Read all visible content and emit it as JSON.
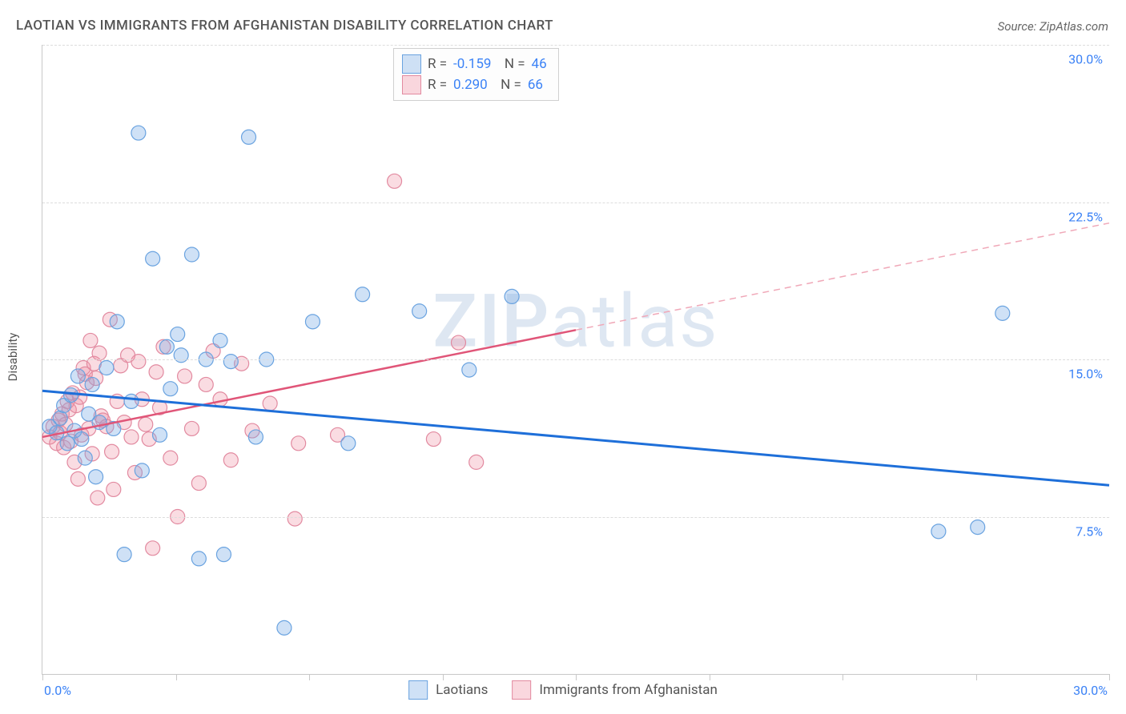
{
  "title": "LAOTIAN VS IMMIGRANTS FROM AFGHANISTAN DISABILITY CORRELATION CHART",
  "source": "Source: ZipAtlas.com",
  "watermark": "ZIPatlas",
  "ylabel": "Disability",
  "chart": {
    "type": "scatter+regression",
    "x_domain": [
      0,
      30
    ],
    "y_domain": [
      0,
      30
    ],
    "x_ticks": [
      0,
      3.75,
      7.5,
      11.25,
      15,
      18.75,
      22.5,
      26.25,
      30
    ],
    "x_tick_labels": {
      "0": "0.0%",
      "30": "30.0%"
    },
    "y_ticks": [
      7.5,
      15,
      22.5,
      30
    ],
    "y_tick_labels": [
      "7.5%",
      "15.0%",
      "22.5%",
      "30.0%"
    ],
    "grid_color": "#dcdcdc",
    "background": "#ffffff",
    "marker_radius": 9,
    "series": {
      "blue": {
        "label": "Laotians",
        "color_fill": "rgba(118,169,228,0.35)",
        "color_stroke": "#6aa3e0",
        "R": "-0.159",
        "N": "46",
        "regression": {
          "x1": 0,
          "y1": 13.5,
          "x2": 30,
          "y2": 9.0,
          "color": "#1e6fd9",
          "width": 3,
          "extrapolate_dash": false
        },
        "points": [
          [
            0.2,
            11.8
          ],
          [
            0.4,
            11.5
          ],
          [
            0.5,
            12.2
          ],
          [
            0.6,
            12.8
          ],
          [
            0.7,
            11.0
          ],
          [
            0.8,
            13.3
          ],
          [
            0.9,
            11.6
          ],
          [
            1.0,
            14.2
          ],
          [
            1.1,
            11.2
          ],
          [
            1.2,
            10.3
          ],
          [
            1.3,
            12.4
          ],
          [
            1.4,
            13.8
          ],
          [
            1.5,
            9.4
          ],
          [
            1.6,
            12.0
          ],
          [
            1.8,
            14.6
          ],
          [
            2.0,
            11.7
          ],
          [
            2.1,
            16.8
          ],
          [
            2.3,
            5.7
          ],
          [
            2.5,
            13.0
          ],
          [
            2.7,
            25.8
          ],
          [
            2.8,
            9.7
          ],
          [
            3.1,
            19.8
          ],
          [
            3.3,
            11.4
          ],
          [
            3.5,
            15.6
          ],
          [
            3.6,
            13.6
          ],
          [
            3.8,
            16.2
          ],
          [
            3.9,
            15.2
          ],
          [
            4.2,
            20.0
          ],
          [
            4.4,
            5.5
          ],
          [
            4.6,
            15.0
          ],
          [
            5.0,
            15.9
          ],
          [
            5.1,
            5.7
          ],
          [
            5.3,
            14.9
          ],
          [
            5.8,
            25.6
          ],
          [
            6.0,
            11.3
          ],
          [
            6.3,
            15.0
          ],
          [
            6.8,
            2.2
          ],
          [
            7.6,
            16.8
          ],
          [
            8.6,
            11.0
          ],
          [
            9.0,
            18.1
          ],
          [
            10.6,
            17.3
          ],
          [
            12.0,
            14.5
          ],
          [
            13.2,
            18.0
          ],
          [
            25.2,
            6.8
          ],
          [
            26.3,
            7.0
          ],
          [
            27.0,
            17.2
          ]
        ]
      },
      "pink": {
        "label": "Immigrants from Afghanistan",
        "color_fill": "rgba(240,140,160,0.30)",
        "color_stroke": "#e28aa0",
        "R": "0.290",
        "N": "66",
        "regression": {
          "x1": 0,
          "y1": 11.3,
          "x2": 30,
          "y2": 21.5,
          "color": "#e05578",
          "width": 2.5,
          "solid_until_x": 15.0
        },
        "points": [
          [
            0.2,
            11.3
          ],
          [
            0.3,
            11.8
          ],
          [
            0.4,
            11.0
          ],
          [
            0.45,
            12.1
          ],
          [
            0.5,
            11.5
          ],
          [
            0.55,
            12.4
          ],
          [
            0.6,
            10.8
          ],
          [
            0.65,
            11.9
          ],
          [
            0.7,
            13.0
          ],
          [
            0.75,
            12.6
          ],
          [
            0.8,
            11.1
          ],
          [
            0.85,
            13.4
          ],
          [
            0.9,
            10.1
          ],
          [
            0.95,
            12.8
          ],
          [
            1.0,
            9.3
          ],
          [
            1.05,
            13.2
          ],
          [
            1.1,
            11.4
          ],
          [
            1.15,
            14.6
          ],
          [
            1.2,
            14.3
          ],
          [
            1.25,
            13.9
          ],
          [
            1.3,
            11.7
          ],
          [
            1.35,
            15.9
          ],
          [
            1.4,
            10.5
          ],
          [
            1.45,
            14.8
          ],
          [
            1.5,
            14.1
          ],
          [
            1.55,
            8.4
          ],
          [
            1.6,
            15.3
          ],
          [
            1.65,
            12.3
          ],
          [
            1.7,
            12.1
          ],
          [
            1.8,
            11.8
          ],
          [
            1.9,
            16.9
          ],
          [
            1.95,
            10.6
          ],
          [
            2.0,
            8.8
          ],
          [
            2.1,
            13.0
          ],
          [
            2.2,
            14.7
          ],
          [
            2.3,
            12.0
          ],
          [
            2.4,
            15.2
          ],
          [
            2.5,
            11.3
          ],
          [
            2.6,
            9.6
          ],
          [
            2.7,
            14.9
          ],
          [
            2.8,
            13.1
          ],
          [
            2.9,
            11.9
          ],
          [
            3.0,
            11.2
          ],
          [
            3.1,
            6.0
          ],
          [
            3.2,
            14.4
          ],
          [
            3.3,
            12.7
          ],
          [
            3.4,
            15.6
          ],
          [
            3.6,
            10.3
          ],
          [
            3.8,
            7.5
          ],
          [
            4.0,
            14.2
          ],
          [
            4.2,
            11.7
          ],
          [
            4.4,
            9.1
          ],
          [
            4.6,
            13.8
          ],
          [
            4.8,
            15.4
          ],
          [
            5.0,
            13.1
          ],
          [
            5.3,
            10.2
          ],
          [
            5.6,
            14.8
          ],
          [
            5.9,
            11.6
          ],
          [
            6.4,
            12.9
          ],
          [
            7.1,
            7.4
          ],
          [
            7.2,
            11.0
          ],
          [
            8.3,
            11.4
          ],
          [
            9.9,
            23.5
          ],
          [
            11.0,
            11.2
          ],
          [
            11.7,
            15.8
          ],
          [
            12.2,
            10.1
          ]
        ]
      }
    }
  }
}
